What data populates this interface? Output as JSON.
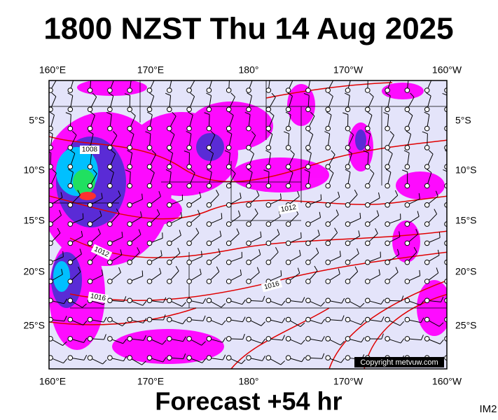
{
  "header": {
    "title": "1800 NZST Thu 14 Aug 2025"
  },
  "map": {
    "longitude_labels": [
      "160°E",
      "170°E",
      "180°",
      "170°W",
      "160°W"
    ],
    "latitude_labels": [
      "5°S",
      "10°S",
      "15°S",
      "20°S",
      "25°S"
    ],
    "isobar_labels": [
      "1008",
      "1012",
      "1012",
      "1016",
      "1016"
    ],
    "copyright": "Copyright metvuw.com"
  },
  "footer": {
    "forecast": "Forecast +54 hr",
    "image_id": "IM2"
  }
}
